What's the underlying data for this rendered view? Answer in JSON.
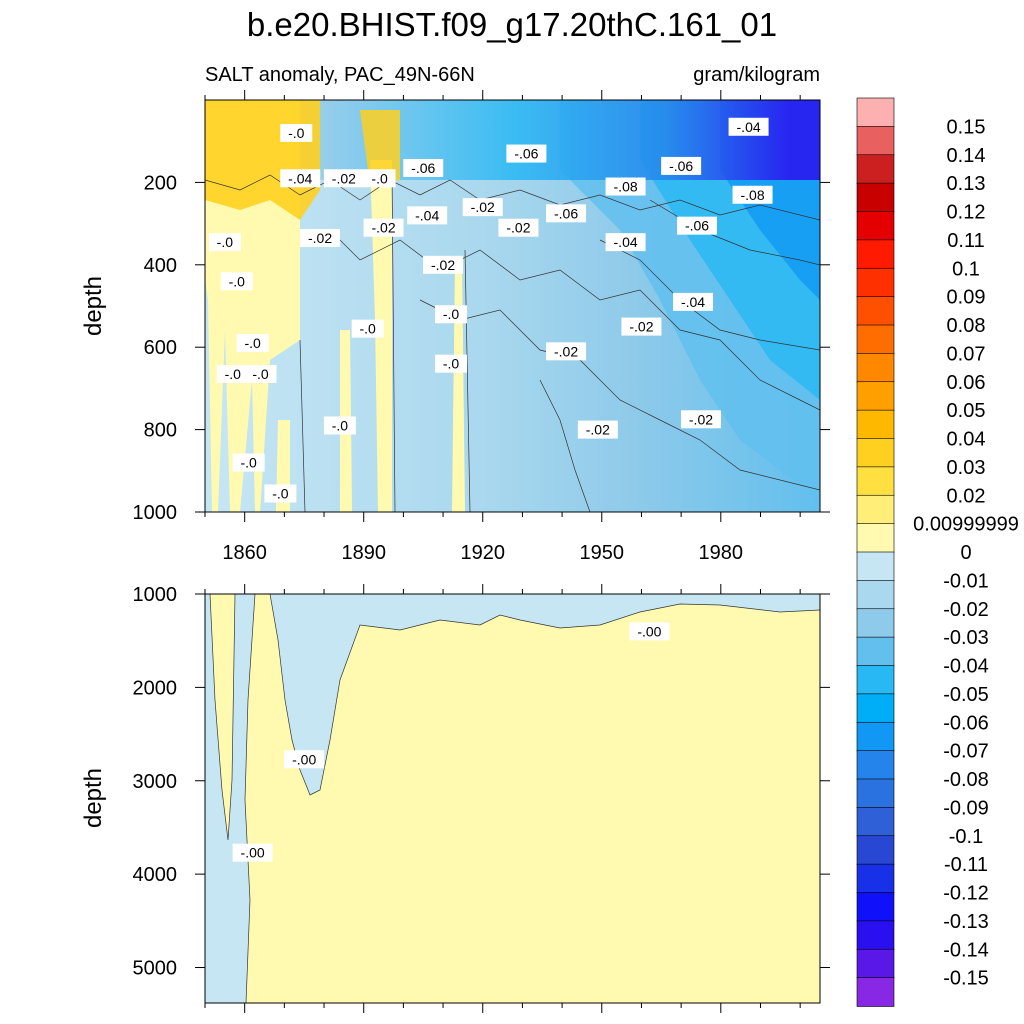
{
  "chart_data": {
    "type": "heatmap",
    "title": "b.e20.BHIST.f09_g17.20thC.161_01",
    "subtitle_left": "SALT anomaly, PAC_49N-66N",
    "subtitle_right": "gram/kilogram",
    "colorbar": {
      "levels": [
        "0.15",
        "0.14",
        "0.13",
        "0.12",
        "0.11",
        "0.1",
        "0.09",
        "0.08",
        "0.07",
        "0.06",
        "0.05",
        "0.04",
        "0.03",
        "0.02",
        "0.00999999",
        "0",
        "-0.01",
        "-0.02",
        "-0.03",
        "-0.04",
        "-0.05",
        "-0.06",
        "-0.07",
        "-0.08",
        "-0.09",
        "-0.1",
        "-0.11",
        "-0.12",
        "-0.13",
        "-0.14",
        "-0.15"
      ],
      "colors": [
        "#fcb0b0",
        "#e86060",
        "#cc2020",
        "#c80000",
        "#e40000",
        "#ff1a00",
        "#ff3000",
        "#ff5000",
        "#ff6c00",
        "#ff8800",
        "#ffa000",
        "#ffb800",
        "#ffd020",
        "#ffe040",
        "#ffee78",
        "#fffab0",
        "#c6e6f4",
        "#aad8ee",
        "#8ecaea",
        "#62bfee",
        "#28b8f4",
        "#00aef8",
        "#1098f4",
        "#2484ec",
        "#2a72e0",
        "#3060d8",
        "#2848d4",
        "#1830e8",
        "#1010fa",
        "#2a10f0",
        "#5a18e8",
        "#8828e4"
      ]
    },
    "panels": [
      {
        "name": "upper",
        "xlim": [
          1850,
          2005
        ],
        "ylim": [
          1000,
          0
        ],
        "xticks": [
          1860,
          1890,
          1920,
          1950,
          1980
        ],
        "yticks": [
          200,
          400,
          600,
          800,
          1000
        ],
        "ylabel": "depth",
        "contour_labels": [
          {
            "t": "-.0",
            "x": 1873,
            "y": 80
          },
          {
            "t": "-.04",
            "x": 1874,
            "y": 190
          },
          {
            "t": "-.02",
            "x": 1885,
            "y": 190
          },
          {
            "t": "-.0",
            "x": 1894,
            "y": 190
          },
          {
            "t": "-.06",
            "x": 1905,
            "y": 165
          },
          {
            "t": "-.06",
            "x": 1931,
            "y": 130
          },
          {
            "t": "-.06",
            "x": 1970,
            "y": 160
          },
          {
            "t": "-.04",
            "x": 1987,
            "y": 65
          },
          {
            "t": "-.08",
            "x": 1988,
            "y": 230
          },
          {
            "t": "-.08",
            "x": 1956,
            "y": 210
          },
          {
            "t": "-.06",
            "x": 1941,
            "y": 275
          },
          {
            "t": "-.04",
            "x": 1906,
            "y": 280
          },
          {
            "t": "-.02",
            "x": 1920,
            "y": 260
          },
          {
            "t": "-.02",
            "x": 1895,
            "y": 310
          },
          {
            "t": "-.02",
            "x": 1929,
            "y": 310
          },
          {
            "t": "-.04",
            "x": 1956,
            "y": 345
          },
          {
            "t": "-.06",
            "x": 1974,
            "y": 305
          },
          {
            "t": "-.02",
            "x": 1879,
            "y": 335
          },
          {
            "t": "-.0",
            "x": 1855,
            "y": 345
          },
          {
            "t": "-.0",
            "x": 1858,
            "y": 440
          },
          {
            "t": "-.02",
            "x": 1910,
            "y": 400
          },
          {
            "t": "-.04",
            "x": 1973,
            "y": 490
          },
          {
            "t": "-.0",
            "x": 1912,
            "y": 520
          },
          {
            "t": "-.0",
            "x": 1891,
            "y": 555
          },
          {
            "t": "-.02",
            "x": 1960,
            "y": 550
          },
          {
            "t": "-.0",
            "x": 1862,
            "y": 590
          },
          {
            "t": "-.02",
            "x": 1941,
            "y": 610
          },
          {
            "t": "-.0",
            "x": 1857,
            "y": 665
          },
          {
            "t": "-.0",
            "x": 1864,
            "y": 665
          },
          {
            "t": "-.0",
            "x": 1912,
            "y": 640
          },
          {
            "t": "-.02",
            "x": 1975,
            "y": 775
          },
          {
            "t": "-.02",
            "x": 1949,
            "y": 800
          },
          {
            "t": "-.0",
            "x": 1884,
            "y": 790
          },
          {
            "t": "-.0",
            "x": 1861,
            "y": 880
          },
          {
            "t": "-.0",
            "x": 1869,
            "y": 955
          }
        ]
      },
      {
        "name": "lower",
        "xlim": [
          1850,
          2005
        ],
        "ylim": [
          5380,
          1000
        ],
        "xticks": [
          1860,
          1890,
          1920,
          1950,
          1980
        ],
        "yticks": [
          1000,
          2000,
          3000,
          4000,
          5000
        ],
        "ylabel": "depth",
        "contour_labels": [
          {
            "t": "-.00",
            "x": 1962,
            "y": 1400
          },
          {
            "t": "-.00",
            "x": 1875,
            "y": 2770
          },
          {
            "t": "-.00",
            "x": 1862,
            "y": 3770
          }
        ]
      }
    ]
  }
}
